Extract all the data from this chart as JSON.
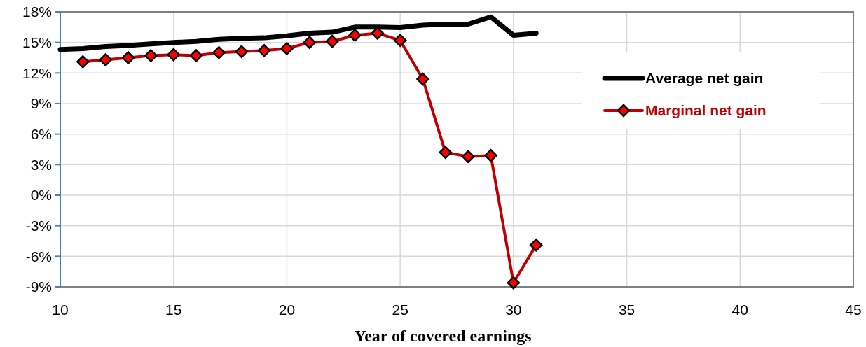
{
  "chart_data": {
    "type": "line",
    "xlabel": "Year of covered earnings",
    "xlim": [
      10,
      45
    ],
    "xticks": [
      10,
      15,
      20,
      25,
      30,
      35,
      40,
      45
    ],
    "ylim": [
      -9,
      18
    ],
    "yticks": [
      {
        "value": -9,
        "label": "-9%"
      },
      {
        "value": -6,
        "label": "-6%"
      },
      {
        "value": -3,
        "label": "-3%"
      },
      {
        "value": 0,
        "label": "0%"
      },
      {
        "value": 3,
        "label": "3%"
      },
      {
        "value": 6,
        "label": "6%"
      },
      {
        "value": 9,
        "label": "9%"
      },
      {
        "value": 12,
        "label": "12%"
      },
      {
        "value": 15,
        "label": "15%"
      },
      {
        "value": 18,
        "label": "18%"
      }
    ],
    "grid": true,
    "legend": "right",
    "series": [
      {
        "name": "Average net gain",
        "color": "#000000",
        "marker": "none",
        "x": [
          10,
          11,
          12,
          13,
          14,
          15,
          16,
          17,
          18,
          19,
          20,
          21,
          22,
          23,
          24,
          25,
          26,
          27,
          28,
          29,
          30,
          31
        ],
        "values": [
          14.3,
          14.4,
          14.6,
          14.7,
          14.85,
          15.0,
          15.1,
          15.3,
          15.4,
          15.45,
          15.65,
          15.9,
          16.0,
          16.5,
          16.5,
          16.45,
          16.7,
          16.8,
          16.8,
          17.5,
          15.7,
          15.9
        ]
      },
      {
        "name": "Marginal net gain",
        "color": "#c00000",
        "marker": "diamond",
        "x": [
          11,
          12,
          13,
          14,
          15,
          16,
          17,
          18,
          19,
          20,
          21,
          22,
          23,
          24,
          25,
          26,
          27,
          28,
          29,
          30,
          31
        ],
        "values": [
          13.1,
          13.3,
          13.5,
          13.7,
          13.8,
          13.7,
          14.0,
          14.1,
          14.2,
          14.4,
          15.0,
          15.1,
          15.7,
          15.9,
          15.2,
          11.4,
          4.2,
          3.8,
          3.9,
          -8.6,
          -4.9
        ]
      }
    ]
  }
}
